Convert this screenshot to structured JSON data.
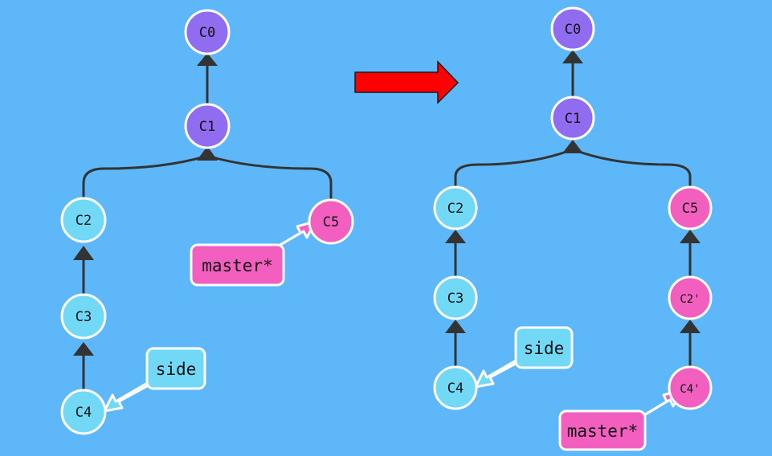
{
  "colors": {
    "background": "#5eb7f8",
    "node_purple": "#8f6cf0",
    "node_cyan": "#71d8f6",
    "node_pink": "#f25fbf",
    "edge": "#333333",
    "node_border": "#ffffff",
    "transition_arrow": "#ff0000"
  },
  "transition": {
    "icon": "right-arrow-icon",
    "color": "#ff0000"
  },
  "before": {
    "nodes": [
      {
        "id": "C0",
        "label": "C0",
        "color": "purple"
      },
      {
        "id": "C1",
        "label": "C1",
        "color": "purple"
      },
      {
        "id": "C2",
        "label": "C2",
        "color": "cyan"
      },
      {
        "id": "C3",
        "label": "C3",
        "color": "cyan"
      },
      {
        "id": "C4",
        "label": "C4",
        "color": "cyan"
      },
      {
        "id": "C5",
        "label": "C5",
        "color": "pink"
      }
    ],
    "branches": [
      {
        "label": "master*",
        "target": "C5",
        "color": "pink"
      },
      {
        "label": "side",
        "target": "C4",
        "color": "cyan"
      }
    ]
  },
  "after": {
    "nodes": [
      {
        "id": "C0",
        "label": "C0",
        "color": "purple"
      },
      {
        "id": "C1",
        "label": "C1",
        "color": "purple"
      },
      {
        "id": "C2",
        "label": "C2",
        "color": "cyan"
      },
      {
        "id": "C3",
        "label": "C3",
        "color": "cyan"
      },
      {
        "id": "C4",
        "label": "C4",
        "color": "cyan"
      },
      {
        "id": "C5",
        "label": "C5",
        "color": "pink"
      },
      {
        "id": "C2p",
        "label": "C2'",
        "color": "pink"
      },
      {
        "id": "C4p",
        "label": "C4'",
        "color": "pink"
      }
    ],
    "branches": [
      {
        "label": "side",
        "target": "C4",
        "color": "cyan"
      },
      {
        "label": "master*",
        "target": "C4p",
        "color": "pink"
      }
    ]
  }
}
